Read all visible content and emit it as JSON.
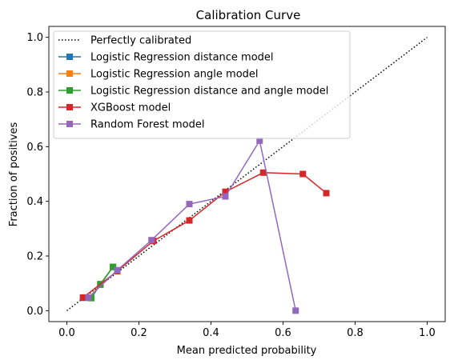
{
  "chart_data": {
    "type": "line",
    "title": "Calibration Curve",
    "xlabel": "Mean predicted probability",
    "ylabel": "Fraction of positives",
    "xlim": [
      -0.05,
      1.05
    ],
    "ylim": [
      -0.04,
      1.04
    ],
    "xticks": [
      "0.0",
      "0.2",
      "0.4",
      "0.6",
      "0.8",
      "1.0"
    ],
    "yticks": [
      "0.0",
      "0.2",
      "0.4",
      "0.6",
      "0.8",
      "1.0"
    ],
    "grid": false,
    "legend_position": "top-left",
    "series": [
      {
        "name": "Perfectly calibrated",
        "color": "#000000",
        "style": "dotted",
        "marker": "none",
        "x": [
          0,
          1
        ],
        "y": [
          0,
          1
        ]
      },
      {
        "name": "Logistic Regression distance model",
        "color": "#1f77b4",
        "style": "solid",
        "marker": "square",
        "x": [
          0.045,
          0.063,
          0.093,
          0.128,
          0.14
        ],
        "y": [
          0.047,
          0.047,
          0.095,
          0.16,
          0.145
        ]
      },
      {
        "name": "Logistic Regression angle model",
        "color": "#ff7f0e",
        "style": "solid",
        "marker": "square",
        "x": [
          0.048,
          0.065,
          0.093,
          0.128,
          0.14
        ],
        "y": [
          0.048,
          0.048,
          0.097,
          0.16,
          0.145
        ]
      },
      {
        "name": "Logistic Regression distance and angle model",
        "color": "#2ca02c",
        "style": "solid",
        "marker": "square",
        "x": [
          0.048,
          0.068,
          0.093,
          0.128,
          0.14
        ],
        "y": [
          0.048,
          0.046,
          0.097,
          0.16,
          0.145
        ]
      },
      {
        "name": "XGBoost model",
        "color": "#d62728",
        "style": "solid",
        "marker": "square",
        "x": [
          0.045,
          0.14,
          0.24,
          0.34,
          0.44,
          0.545,
          0.655,
          0.72
        ],
        "y": [
          0.048,
          0.145,
          0.255,
          0.33,
          0.435,
          0.505,
          0.5,
          0.43
        ]
      },
      {
        "name": "Random Forest model",
        "color": "#9467bd",
        "style": "solid",
        "marker": "square",
        "x": [
          0.06,
          0.14,
          0.235,
          0.34,
          0.44,
          0.535,
          0.635
        ],
        "y": [
          0.048,
          0.148,
          0.258,
          0.39,
          0.418,
          0.622,
          0.0
        ]
      }
    ]
  }
}
